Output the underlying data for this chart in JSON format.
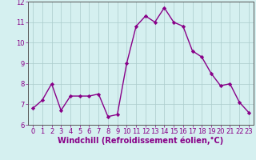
{
  "x": [
    0,
    1,
    2,
    3,
    4,
    5,
    6,
    7,
    8,
    9,
    10,
    11,
    12,
    13,
    14,
    15,
    16,
    17,
    18,
    19,
    20,
    21,
    22,
    23
  ],
  "y": [
    6.8,
    7.2,
    8.0,
    6.7,
    7.4,
    7.4,
    7.4,
    7.5,
    6.4,
    6.5,
    9.0,
    10.8,
    11.3,
    11.0,
    11.7,
    11.0,
    10.8,
    9.6,
    9.3,
    8.5,
    7.9,
    8.0,
    7.1,
    6.6
  ],
  "line_color": "#880088",
  "marker": "D",
  "markersize": 2.2,
  "linewidth": 1.0,
  "xlabel": "Windchill (Refroidissement éolien,°C)",
  "xlim": [
    -0.5,
    23.5
  ],
  "ylim": [
    6.0,
    12.0
  ],
  "yticks": [
    6,
    7,
    8,
    9,
    10,
    11,
    12
  ],
  "xticks": [
    0,
    1,
    2,
    3,
    4,
    5,
    6,
    7,
    8,
    9,
    10,
    11,
    12,
    13,
    14,
    15,
    16,
    17,
    18,
    19,
    20,
    21,
    22,
    23
  ],
  "bg_color": "#d5f0f0",
  "grid_color": "#aacccc",
  "axis_color": "#555555",
  "tick_fontsize": 6.0,
  "xlabel_fontsize": 7.0
}
